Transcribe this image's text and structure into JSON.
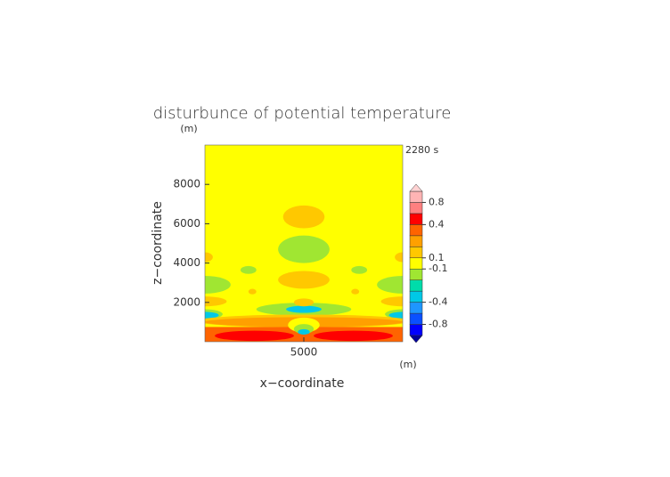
{
  "chart_data": {
    "type": "contour",
    "title": "disturbunce of potential temperature",
    "time_label": "2280 s",
    "x_label": "x−coordinate",
    "y_label": "z−coordinate",
    "x_unit": "(m)",
    "y_unit": "(m)",
    "xlim": [
      0,
      10000
    ],
    "ylim": [
      0,
      10000
    ],
    "xticks": [
      5000
    ],
    "yticks": [
      2000,
      4000,
      6000,
      8000
    ],
    "colorbar": {
      "bounds": [
        -1,
        -0.8,
        -0.6,
        -0.4,
        -0.3,
        -0.2,
        -0.1,
        0.1,
        0.2,
        0.3,
        0.4,
        0.6,
        0.8,
        1
      ],
      "colors": [
        "#0000ff",
        "#0a50ff",
        "#1e96ff",
        "#00c8e6",
        "#00dcaa",
        "#a0e632",
        "#ffff00",
        "#ffc800",
        "#ffa000",
        "#ff6400",
        "#ff0000",
        "#ff8080",
        "#ffb4b4"
      ],
      "under_color": "#00009a",
      "over_color": "#ffd2d2",
      "ticks": [
        0.8,
        0.4,
        0.1,
        -0.1,
        -0.4,
        -0.8
      ]
    }
  }
}
